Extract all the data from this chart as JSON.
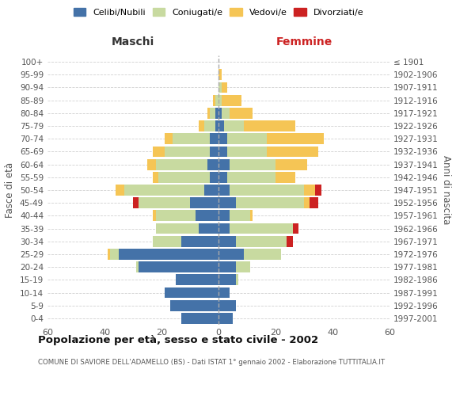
{
  "age_groups": [
    "0-4",
    "5-9",
    "10-14",
    "15-19",
    "20-24",
    "25-29",
    "30-34",
    "35-39",
    "40-44",
    "45-49",
    "50-54",
    "55-59",
    "60-64",
    "65-69",
    "70-74",
    "75-79",
    "80-84",
    "85-89",
    "90-94",
    "95-99",
    "100+"
  ],
  "birth_years": [
    "1997-2001",
    "1992-1996",
    "1987-1991",
    "1982-1986",
    "1977-1981",
    "1972-1976",
    "1967-1971",
    "1962-1966",
    "1957-1961",
    "1952-1956",
    "1947-1951",
    "1942-1946",
    "1937-1941",
    "1932-1936",
    "1927-1931",
    "1922-1926",
    "1917-1921",
    "1912-1916",
    "1907-1911",
    "1902-1906",
    "≤ 1901"
  ],
  "maschi": {
    "celibi": [
      13,
      17,
      19,
      15,
      28,
      35,
      13,
      7,
      8,
      10,
      5,
      3,
      4,
      3,
      3,
      1,
      1,
      0,
      0,
      0,
      0
    ],
    "coniugati": [
      0,
      0,
      0,
      0,
      1,
      3,
      10,
      15,
      14,
      18,
      28,
      18,
      18,
      16,
      13,
      4,
      2,
      1,
      0,
      0,
      0
    ],
    "vedovi": [
      0,
      0,
      0,
      0,
      0,
      1,
      0,
      0,
      1,
      0,
      3,
      2,
      3,
      4,
      3,
      2,
      1,
      1,
      0,
      0,
      0
    ],
    "divorziati": [
      0,
      0,
      0,
      0,
      0,
      0,
      0,
      0,
      0,
      2,
      0,
      0,
      0,
      0,
      0,
      0,
      0,
      0,
      0,
      0,
      0
    ]
  },
  "femmine": {
    "nubili": [
      5,
      6,
      4,
      6,
      6,
      9,
      6,
      4,
      4,
      6,
      4,
      3,
      4,
      3,
      3,
      2,
      1,
      0,
      0,
      0,
      0
    ],
    "coniugate": [
      0,
      0,
      0,
      1,
      5,
      13,
      18,
      22,
      7,
      24,
      26,
      17,
      16,
      14,
      14,
      7,
      3,
      1,
      1,
      0,
      0
    ],
    "vedove": [
      0,
      0,
      0,
      0,
      0,
      0,
      0,
      0,
      1,
      2,
      4,
      7,
      11,
      18,
      20,
      18,
      8,
      7,
      2,
      1,
      0
    ],
    "divorziate": [
      0,
      0,
      0,
      0,
      0,
      0,
      2,
      2,
      0,
      3,
      2,
      0,
      0,
      0,
      0,
      0,
      0,
      0,
      0,
      0,
      0
    ]
  },
  "colors": {
    "celibi_nubili": "#4472a8",
    "coniugati": "#c8daa0",
    "vedovi": "#f5c555",
    "divorziati": "#cc2222"
  },
  "xlim": 60,
  "title": "Popolazione per età, sesso e stato civile - 2002",
  "subtitle": "COMUNE DI SAVIORE DELL'ADAMELLO (BS) - Dati ISTAT 1° gennaio 2002 - Elaborazione TUTTITALIA.IT",
  "legend_labels": [
    "Celibi/Nubili",
    "Coniugati/e",
    "Vedovi/e",
    "Divorziati/e"
  ],
  "xlabel_left": "Maschi",
  "xlabel_right": "Femmine",
  "ylabel_left": "Fasce di età",
  "ylabel_right": "Anni di nascita",
  "background_color": "#ffffff",
  "grid_color": "#cccccc"
}
